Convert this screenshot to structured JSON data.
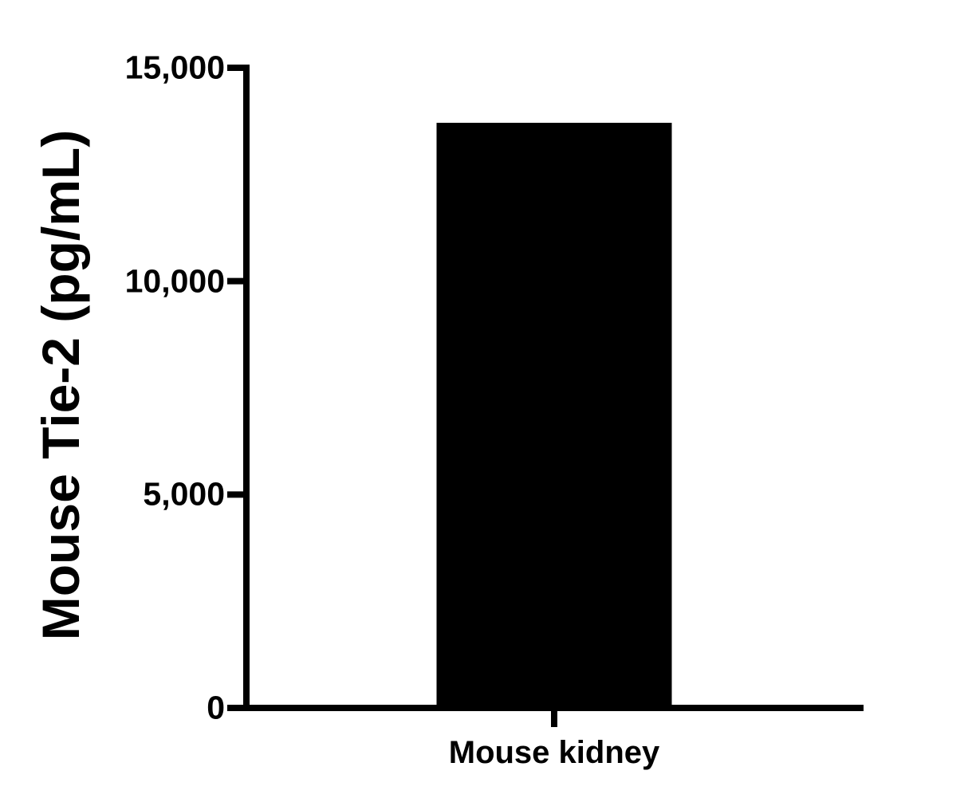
{
  "figure": {
    "background": "#ffffff"
  },
  "chart_data": {
    "type": "bar",
    "title": "",
    "xlabel": "",
    "ylabel": "Mouse Tie-2 (pg/mL)",
    "categories": [
      "Mouse kidney"
    ],
    "values": [
      13710
    ],
    "ylim": [
      0,
      15000
    ],
    "yticks": [
      0,
      5000,
      10000,
      15000
    ],
    "ytick_labels": [
      "0",
      "5,000",
      "10,000",
      "15,000"
    ],
    "grid": false,
    "legend_position": "none",
    "bar_color": "#000000",
    "axis_color": "#000000",
    "text_color": "#000000"
  }
}
